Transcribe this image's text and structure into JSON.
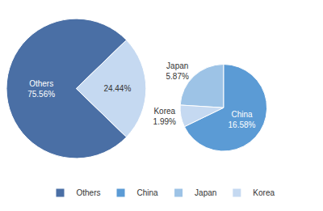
{
  "chart_data": [
    {
      "type": "pie",
      "categories": [
        "Others",
        null
      ],
      "values": [
        75.56,
        24.44
      ],
      "colors": [
        "#4A6FA5",
        "#C5D9F1"
      ],
      "data_labels": true,
      "value_labels": [
        "Others\n75.56%",
        "24.44%"
      ],
      "legend": "bottom"
    },
    {
      "type": "pie",
      "categories": [
        "China",
        "Japan",
        "Korea"
      ],
      "values": [
        16.58,
        5.87,
        1.99
      ],
      "colors": [
        "#5B9BD5",
        "#9DC3E6",
        "#C5D9F1"
      ],
      "data_labels": true,
      "value_labels": [
        "China\n16.58%",
        "Japan\n5.87%",
        "Korea\n1.99%"
      ]
    }
  ]
}
